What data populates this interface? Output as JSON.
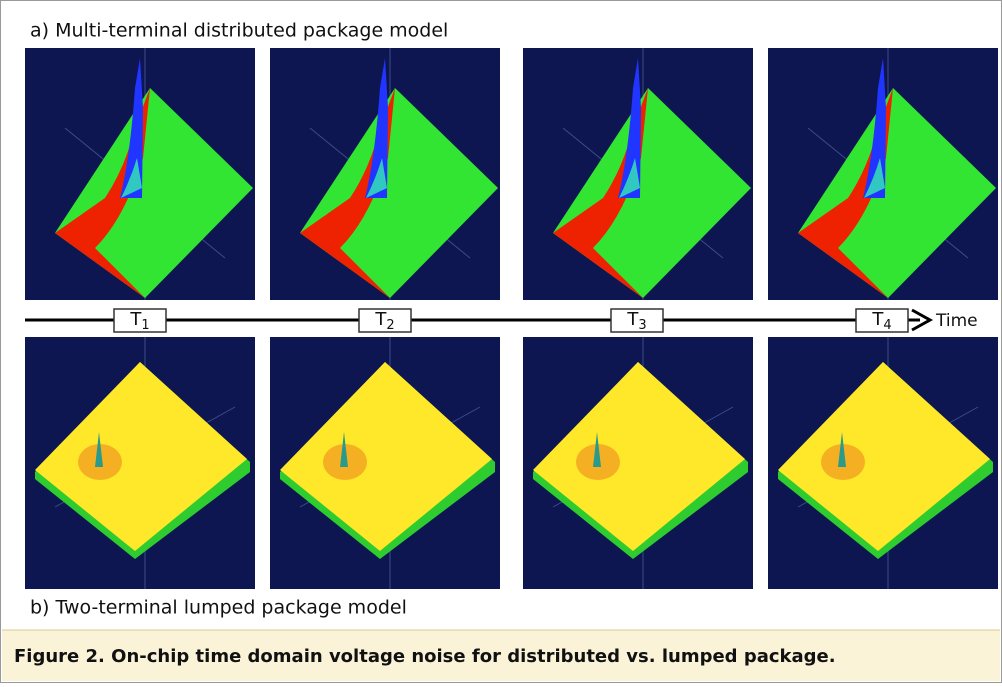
{
  "panel_a": {
    "title": "a) Multi-terminal distributed package model"
  },
  "timeline": {
    "ticks": [
      {
        "letter": "T",
        "sub": "1"
      },
      {
        "letter": "T",
        "sub": "2"
      },
      {
        "letter": "T",
        "sub": "3"
      },
      {
        "letter": "T",
        "sub": "4"
      }
    ],
    "axis_label": "Time"
  },
  "panel_b": {
    "title": "b) Two-terminal lumped package model"
  },
  "caption": "Figure 2. On-chip time domain voltage noise for distributed vs. lumped package."
}
